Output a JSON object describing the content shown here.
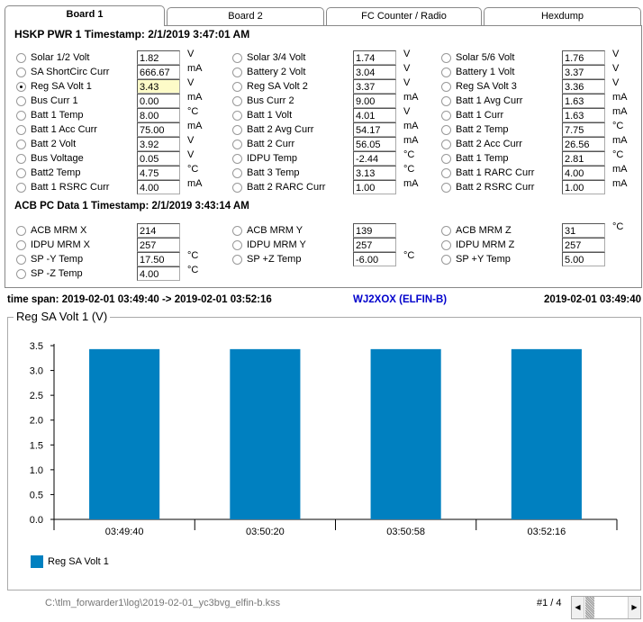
{
  "tabs": [
    {
      "label": "Board 1",
      "active": true
    },
    {
      "label": "Board 2"
    },
    {
      "label": "FC Counter / Radio"
    },
    {
      "label": "Hexdump"
    }
  ],
  "hskp": {
    "title": "HSKP PWR 1 Timestamp: 2/1/2019 3:47:01 AM",
    "columns": [
      [
        {
          "label": "Solar 1/2 Volt",
          "value": "1.82",
          "unit": "V"
        },
        {
          "label": "SA ShortCirc Curr",
          "value": "666.67",
          "unit": "mA"
        },
        {
          "label": "Reg SA Volt 1",
          "value": "3.43",
          "unit": "V",
          "selected": true
        },
        {
          "label": "Bus Curr 1",
          "value": "0.00",
          "unit": "mA"
        },
        {
          "label": "Batt 1 Temp",
          "value": "8.00",
          "unit": "°C"
        },
        {
          "label": "Batt 1 Acc Curr",
          "value": "75.00",
          "unit": "mA"
        },
        {
          "label": "Batt 2 Volt",
          "value": "3.92",
          "unit": "V"
        },
        {
          "label": "Bus Voltage",
          "value": "0.05",
          "unit": "V"
        },
        {
          "label": "Batt2 Temp",
          "value": "4.75",
          "unit": "°C"
        },
        {
          "label": "Batt 1 RSRC Curr",
          "value": "4.00",
          "unit": "mA"
        }
      ],
      [
        {
          "label": "Solar 3/4 Volt",
          "value": "1.74",
          "unit": "V"
        },
        {
          "label": "Battery 2 Volt",
          "value": "3.04",
          "unit": "V"
        },
        {
          "label": "Reg SA Volt 2",
          "value": "3.37",
          "unit": "V"
        },
        {
          "label": "Bus Curr 2",
          "value": "9.00",
          "unit": "mA"
        },
        {
          "label": "Batt 1 Volt",
          "value": "4.01",
          "unit": "V"
        },
        {
          "label": "Batt 2 Avg Curr",
          "value": "54.17",
          "unit": "mA"
        },
        {
          "label": "Batt 2 Curr",
          "value": "56.05",
          "unit": "mA"
        },
        {
          "label": "IDPU Temp",
          "value": "-2.44",
          "unit": "°C"
        },
        {
          "label": "Batt 3 Temp",
          "value": "3.13",
          "unit": "°C"
        },
        {
          "label": "Batt 2 RARC Curr",
          "value": "1.00",
          "unit": "mA"
        }
      ],
      [
        {
          "label": "Solar 5/6 Volt",
          "value": "1.76",
          "unit": "V"
        },
        {
          "label": "Battery 1 Volt",
          "value": "3.37",
          "unit": "V"
        },
        {
          "label": "Reg SA Volt 3",
          "value": "3.36",
          "unit": "V"
        },
        {
          "label": "Batt 1 Avg Curr",
          "value": "1.63",
          "unit": "mA"
        },
        {
          "label": "Batt 1 Curr",
          "value": "1.63",
          "unit": "mA"
        },
        {
          "label": "Batt 2 Temp",
          "value": "7.75",
          "unit": "°C"
        },
        {
          "label": "Batt 2 Acc Curr",
          "value": "26.56",
          "unit": "mA"
        },
        {
          "label": "Batt 1 Temp",
          "value": "2.81",
          "unit": "°C"
        },
        {
          "label": "Batt 1 RARC Curr",
          "value": "4.00",
          "unit": "mA"
        },
        {
          "label": "Batt 2 RSRC Curr",
          "value": "1.00",
          "unit": "mA"
        }
      ]
    ]
  },
  "acb": {
    "title": "ACB PC Data 1 Timestamp: 2/1/2019 3:43:14 AM",
    "columns": [
      [
        {
          "label": "ACB MRM X",
          "value": "214",
          "unit": ""
        },
        {
          "label": "IDPU MRM X",
          "value": "257",
          "unit": ""
        },
        {
          "label": "SP -Y Temp",
          "value": "17.50",
          "unit": "°C"
        },
        {
          "label": "SP -Z Temp",
          "value": "4.00",
          "unit": "°C"
        }
      ],
      [
        {
          "label": "ACB MRM Y",
          "value": "139",
          "unit": ""
        },
        {
          "label": "IDPU MRM Y",
          "value": "257",
          "unit": ""
        },
        {
          "label": "SP +Z Temp",
          "value": "-6.00",
          "unit": "°C"
        }
      ],
      [
        {
          "label": "ACB MRM Z",
          "value": "31",
          "unit": "°C"
        },
        {
          "label": "IDPU MRM Z",
          "value": "257",
          "unit": ""
        },
        {
          "label": "SP +Y Temp",
          "value": "5.00",
          "unit": ""
        }
      ]
    ]
  },
  "status": {
    "time_span": "time span: 2019-02-01 03:49:40 -> 2019-02-01 03:52:16",
    "station": "WJ2XOX (ELFIN-B)",
    "current_time": "2019-02-01 03:49:40",
    "station_color": "#0000cc"
  },
  "chart_data": {
    "type": "bar",
    "title": "Reg SA Volt 1 (V)",
    "categories": [
      "03:49:40",
      "03:50:20",
      "03:50:58",
      "03:52:16"
    ],
    "series": [
      {
        "name": "Reg SA Volt 1",
        "values": [
          3.43,
          3.43,
          3.43,
          3.43
        ],
        "color": "#0080c0"
      }
    ],
    "ylim": [
      0,
      3.5
    ],
    "yticks": [
      "0.0",
      "0.5",
      "1.0",
      "1.5",
      "2.0",
      "2.5",
      "3.0",
      "3.5"
    ],
    "grid": false,
    "legend": "bottom-left"
  },
  "footer": {
    "file_path": "C:\\tlm_forwarder1\\log\\2019-02-01_yc3bvg_elfin-b.kss",
    "page": "#1 / 4"
  }
}
